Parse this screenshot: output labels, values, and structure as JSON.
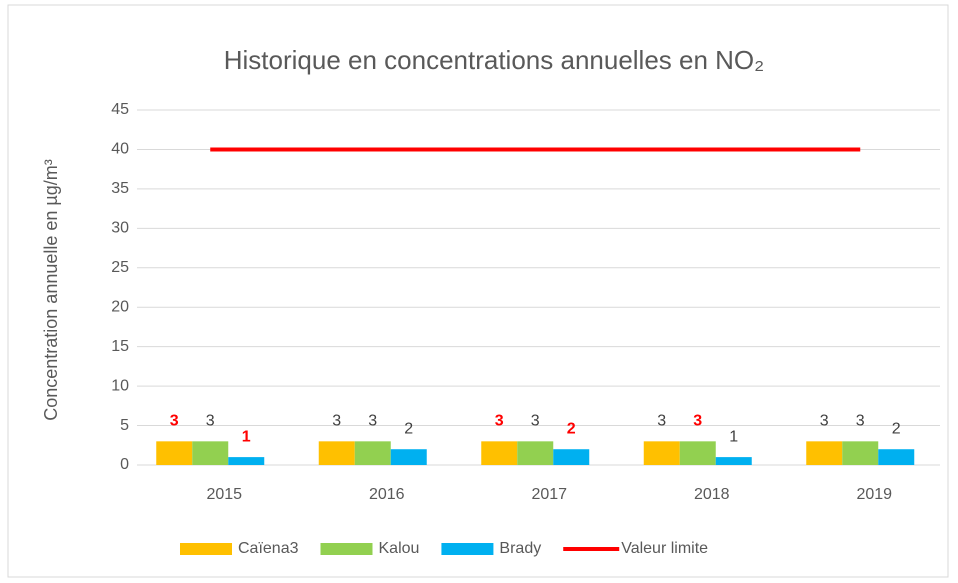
{
  "chart_data": {
    "type": "bar",
    "title": "Historique en concentrations annuelles en NO₂",
    "y_label": "Concentration annuelle en µg/m³",
    "categories": [
      "2015",
      "2016",
      "2017",
      "2018",
      "2019"
    ],
    "series": [
      {
        "name": "Caïena3",
        "color": "#FFC000",
        "values": [
          3,
          3,
          3,
          3,
          3
        ],
        "label_colors": [
          "#FF0000",
          "#404040",
          "#FF0000",
          "#404040",
          "#404040"
        ]
      },
      {
        "name": "Kalou",
        "color": "#92D050",
        "values": [
          3,
          3,
          3,
          3,
          3
        ],
        "label_colors": [
          "#404040",
          "#404040",
          "#404040",
          "#FF0000",
          "#404040"
        ]
      },
      {
        "name": "Brady",
        "color": "#00B0F0",
        "values": [
          1,
          2,
          2,
          1,
          2
        ],
        "label_colors": [
          "#FF0000",
          "#404040",
          "#FF0000",
          "#404040",
          "#404040"
        ]
      },
      {
        "name": "Valeur limite",
        "type": "line",
        "color": "#FF0000",
        "values": [
          40,
          40,
          40,
          40,
          40
        ]
      }
    ],
    "ylim": [
      0,
      45
    ],
    "yticks": [
      0,
      5,
      10,
      15,
      20,
      25,
      30,
      35,
      40,
      45
    ],
    "grid": true,
    "legend": "bottom"
  }
}
